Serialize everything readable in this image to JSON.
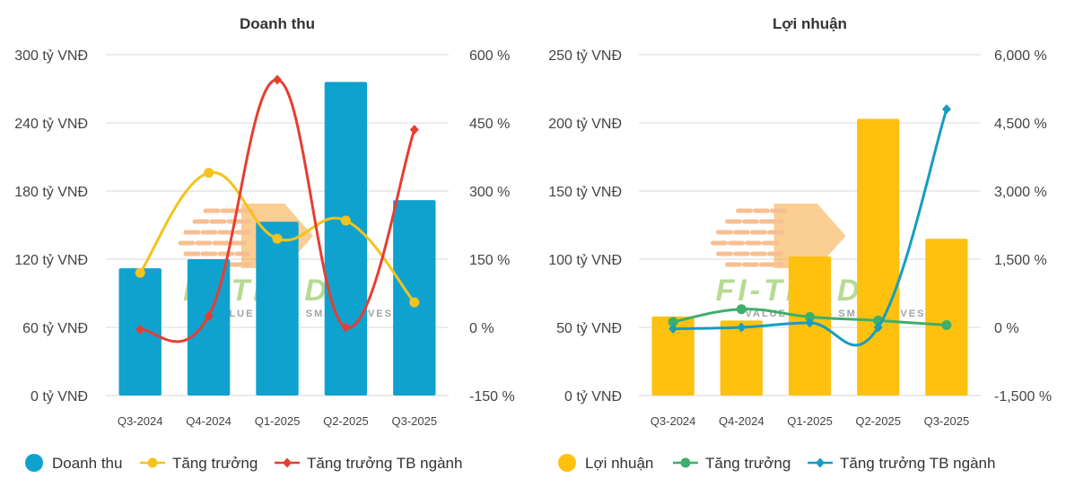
{
  "chart_data": [
    {
      "type": "bar+line",
      "title": "Doanh thu",
      "categories": [
        "Q3-2024",
        "Q4-2024",
        "Q1-2025",
        "Q2-2025",
        "Q3-2025"
      ],
      "left_axis": {
        "ticks": [
          "300 tỷ VNĐ",
          "240 tỷ VNĐ",
          "180 tỷ VNĐ",
          "120 tỷ VNĐ",
          "60 tỷ VNĐ",
          "0 tỷ VNĐ"
        ],
        "range": [
          0,
          300
        ]
      },
      "right_axis": {
        "ticks": [
          "600 %",
          "450 %",
          "300 %",
          "150 %",
          "0 %",
          "-150 %"
        ],
        "range": [
          -150,
          600
        ]
      },
      "bars": {
        "name": "Doanh thu",
        "color": "#0fa2cf",
        "values": [
          112,
          120,
          153,
          276,
          172
        ]
      },
      "series": [
        {
          "name": "Tăng trưởng",
          "color": "#f6c21d",
          "axis": "right",
          "marker": "circle",
          "values": [
            120,
            340,
            195,
            235,
            55
          ]
        },
        {
          "name": "Tăng trưởng TB ngành",
          "color": "#e63e31",
          "axis": "right",
          "marker": "diamond",
          "values": [
            -5,
            25,
            545,
            0,
            435
          ]
        }
      ],
      "legend": [
        "Doanh thu",
        "Tăng trưởng",
        "Tăng trưởng TB ngành"
      ],
      "grid": true,
      "legend_position": "bottom"
    },
    {
      "type": "bar+line",
      "title": "Lợi nhuận",
      "categories": [
        "Q3-2024",
        "Q4-2024",
        "Q1-2025",
        "Q2-2025",
        "Q3-2025"
      ],
      "left_axis": {
        "ticks": [
          "250 tỷ VNĐ",
          "200 tỷ VNĐ",
          "150 tỷ VNĐ",
          "100 tỷ VNĐ",
          "50 tỷ VNĐ",
          "0 tỷ VNĐ"
        ],
        "range": [
          0,
          250
        ]
      },
      "right_axis": {
        "ticks": [
          "6,000 %",
          "4,500 %",
          "3,000 %",
          "1,500 %",
          "0 %",
          "-1,500 %"
        ],
        "range": [
          -1500,
          6000
        ]
      },
      "bars": {
        "name": "Lợi nhuận",
        "color": "#fec10d",
        "values": [
          58,
          55,
          102,
          203,
          115
        ]
      },
      "series": [
        {
          "name": "Tăng trưởng",
          "color": "#3fae6a",
          "axis": "right",
          "marker": "circle",
          "values": [
            120,
            400,
            230,
            150,
            50
          ]
        },
        {
          "name": "Tăng trưởng TB ngành",
          "color": "#159dc2",
          "axis": "right",
          "marker": "diamond",
          "values": [
            -30,
            0,
            100,
            0,
            4800
          ]
        }
      ],
      "legend": [
        "Lợi nhuận",
        "Tăng trưởng",
        "Tăng trưởng TB ngành"
      ],
      "grid": true,
      "legend_position": "bottom"
    }
  ],
  "watermark": {
    "text": "FI-TRADE",
    "tagline": "VALUE DATA - SMART INVESTMENT"
  }
}
